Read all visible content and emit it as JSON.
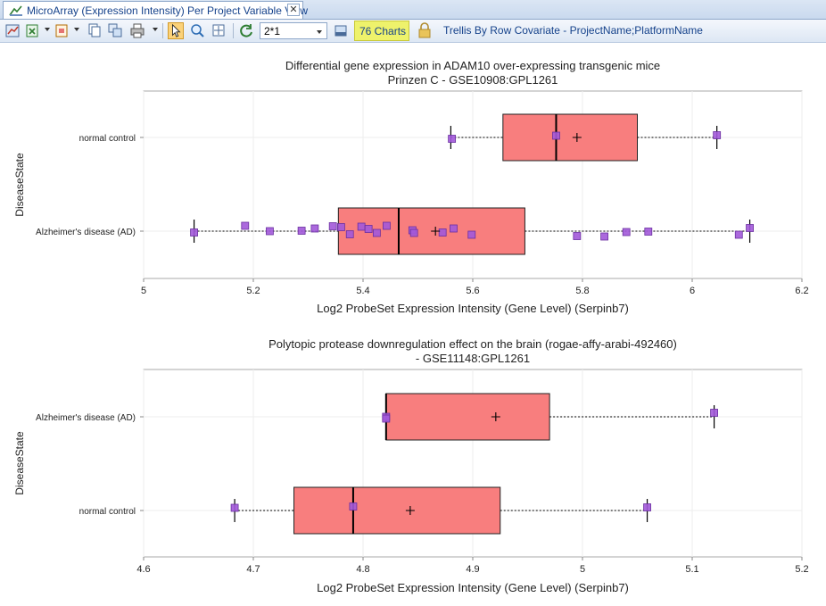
{
  "window": {
    "tab_title": "MicroArray (Expression Intensity) Per Project Variable View",
    "close_symbol": "✕"
  },
  "toolbar": {
    "layout_value": "2*1",
    "charts_count_label": "76 Charts",
    "trellis_label": "Trellis By Row Covariate - ProjectName;PlatformName",
    "icons": [
      "chart-settings-icon",
      "export-excel-icon",
      "export-image-icon",
      "copy-icon",
      "copy-all-icon",
      "print-icon",
      "pointer-icon",
      "zoom-icon",
      "fit-view-icon",
      "refresh-icon",
      "layout-icon",
      "lock-icon"
    ]
  },
  "colors": {
    "box_fill": "#f87e7e",
    "point_fill": "#a259d9",
    "point_stroke": "#6a2fa0",
    "grid": "#eeeeee",
    "toolbar_text": "#15428b",
    "highlight": "#eef26b"
  },
  "chart_data": [
    {
      "type": "boxplot",
      "title": "Differential gene expression in ADAM10 over-expressing transgenic mice",
      "subtitle": "Prinzen C - GSE10908:GPL1261",
      "xlabel": "Log2 ProbeSet Expression Intensity (Gene Level) (Serpinb7)",
      "ylabel": "DiseaseState",
      "xlim": [
        5.0,
        6.2
      ],
      "xticks": [
        5,
        5.2,
        5.4,
        5.6,
        5.8,
        6,
        6.2
      ],
      "xtick_labels": [
        "5",
        "5.2",
        "5.4",
        "5.6",
        "5.8",
        "6",
        "6.2"
      ],
      "grid": true,
      "categories": [
        {
          "name": "normal control",
          "whisker_low": 5.56,
          "q1": 5.655,
          "median": 5.752,
          "q3": 5.9,
          "whisker_high": 6.045,
          "mean": 5.79,
          "points": [
            [
              5.562,
              -0.03
            ],
            [
              5.752,
              0.04
            ],
            [
              6.045,
              0.05
            ]
          ]
        },
        {
          "name": "Alzheimer's disease (AD)",
          "whisker_low": 5.092,
          "q1": 5.355,
          "median": 5.465,
          "q3": 5.695,
          "whisker_high": 6.105,
          "mean": 5.532,
          "points": [
            [
              5.092,
              -0.03
            ],
            [
              5.185,
              0.12
            ],
            [
              5.23,
              0.0
            ],
            [
              5.288,
              0.01
            ],
            [
              5.312,
              0.06
            ],
            [
              5.345,
              0.11
            ],
            [
              5.36,
              0.09
            ],
            [
              5.376,
              -0.07
            ],
            [
              5.397,
              0.1
            ],
            [
              5.41,
              0.05
            ],
            [
              5.425,
              -0.04
            ],
            [
              5.443,
              0.12
            ],
            [
              5.49,
              0.02
            ],
            [
              5.493,
              -0.04
            ],
            [
              5.545,
              -0.03
            ],
            [
              5.565,
              0.06
            ],
            [
              5.598,
              -0.08
            ],
            [
              5.79,
              -0.11
            ],
            [
              5.84,
              -0.12
            ],
            [
              5.88,
              -0.02
            ],
            [
              5.92,
              -0.01
            ],
            [
              6.085,
              -0.08
            ],
            [
              6.105,
              0.07
            ]
          ]
        }
      ]
    },
    {
      "type": "boxplot",
      "title": "Polytopic protease downregulation effect on the brain (rogae-affy-arabi-492460)",
      "subtitle": "- GSE11148:GPL1261",
      "xlabel": "Log2 ProbeSet Expression Intensity (Gene Level) (Serpinb7)",
      "ylabel": "DiseaseState",
      "xlim": [
        4.6,
        5.2
      ],
      "xticks": [
        4.6,
        4.7,
        4.8,
        4.9,
        5.0,
        5.1,
        5.2
      ],
      "xtick_labels": [
        "4.6",
        "4.7",
        "4.8",
        "4.9",
        "5",
        "5.1",
        "5.2"
      ],
      "grid": true,
      "categories": [
        {
          "name": "Alzheimer's disease (AD)",
          "whisker_low": 4.821,
          "q1": 4.821,
          "median": 4.821,
          "q3": 4.97,
          "whisker_high": 5.12,
          "mean": 4.921,
          "points": [
            [
              4.821,
              0.0
            ],
            [
              4.821,
              -0.04
            ],
            [
              5.12,
              0.09
            ]
          ]
        },
        {
          "name": "normal control",
          "whisker_low": 4.683,
          "q1": 4.737,
          "median": 4.791,
          "q3": 4.925,
          "whisker_high": 5.059,
          "mean": 4.843,
          "points": [
            [
              4.683,
              0.06
            ],
            [
              4.791,
              0.09
            ],
            [
              5.059,
              0.07
            ]
          ]
        }
      ]
    }
  ]
}
